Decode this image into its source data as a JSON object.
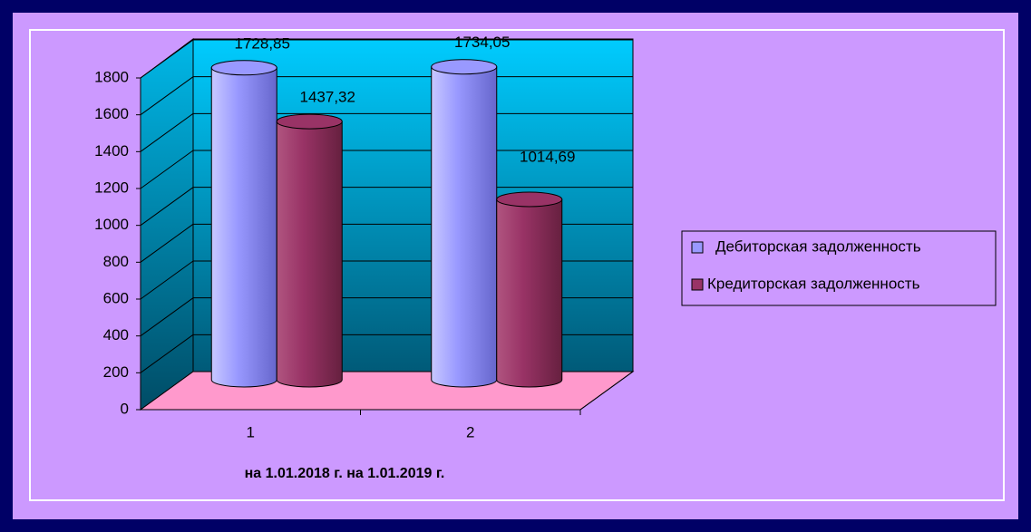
{
  "chart_data": {
    "type": "bar3d",
    "categories": [
      "1",
      "2"
    ],
    "x_label": "на 1.01.2018 г.  на 1.01.2019 г.",
    "series": [
      {
        "name": "Дебиторская задолженность",
        "color": "#9999ff",
        "values": [
          1728.85,
          1734.05
        ],
        "value_labels": [
          "1728,85",
          "1734,05"
        ]
      },
      {
        "name": "Кредиторская задолженность",
        "color": "#993366",
        "values": [
          1437.32,
          1014.69
        ],
        "value_labels": [
          "1437,32",
          "1014,69"
        ]
      }
    ],
    "ylim": [
      0,
      1800
    ],
    "yticks": [
      0,
      200,
      400,
      600,
      800,
      1000,
      1200,
      1400,
      1600,
      1800
    ],
    "grid": true,
    "legend": "right"
  }
}
